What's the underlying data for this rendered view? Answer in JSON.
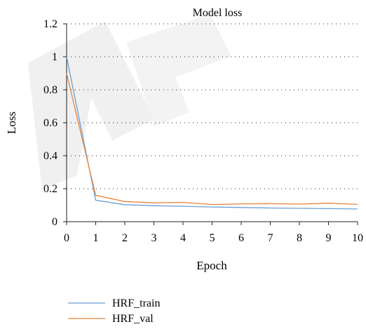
{
  "chart_data": {
    "type": "line",
    "title": "Model loss",
    "xlabel": "Epoch",
    "ylabel": "Loss",
    "xlim": [
      0,
      10
    ],
    "ylim": [
      0,
      1.2
    ],
    "x": [
      0,
      1,
      2,
      3,
      4,
      5,
      6,
      7,
      8,
      9,
      10
    ],
    "x_ticks": [
      "0",
      "1",
      "2",
      "3",
      "4",
      "5",
      "6",
      "7",
      "8",
      "9",
      "10"
    ],
    "y_ticks": [
      "0",
      "0.2",
      "0.4",
      "0.6",
      "0.8",
      "1",
      "1.2"
    ],
    "y_tick_values": [
      0,
      0.2,
      0.4,
      0.6,
      0.8,
      1.0,
      1.2
    ],
    "grid": "horizontal-dotted",
    "legend_position": "bottom-left",
    "series": [
      {
        "name": "HRF_train",
        "color": "#6a9fd4",
        "values": [
          1.0,
          0.13,
          0.103,
          0.097,
          0.093,
          0.089,
          0.086,
          0.083,
          0.081,
          0.079,
          0.077
        ]
      },
      {
        "name": "HRF_val",
        "color": "#e8833a",
        "values": [
          0.9,
          0.16,
          0.122,
          0.114,
          0.117,
          0.104,
          0.108,
          0.109,
          0.107,
          0.112,
          0.105
        ]
      }
    ]
  }
}
